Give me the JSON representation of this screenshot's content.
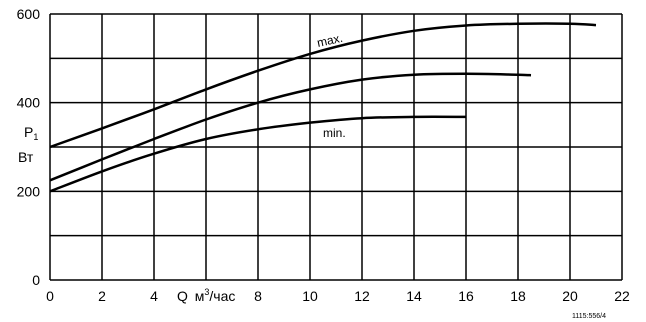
{
  "chart_data": {
    "type": "line",
    "x_ticks": [
      "0",
      "2",
      "4",
      "6",
      "8",
      "10",
      "12",
      "14",
      "16",
      "18",
      "20",
      "22"
    ],
    "y_ticks": [
      "0",
      "200",
      "400",
      "600"
    ],
    "xlim": [
      0,
      22
    ],
    "ylim": [
      0,
      600
    ],
    "grid": true,
    "xlabel_q": "Q",
    "xlabel_unit_prefix": "м",
    "xlabel_unit_sup": "3",
    "xlabel_unit_suffix": "/час",
    "ylabel_p": "P",
    "ylabel_sub": "1",
    "ylabel_unit": "Вт",
    "figure_ref": "1115:556/4",
    "series": [
      {
        "name": "max.",
        "x": [
          0,
          2,
          4,
          6,
          8,
          10,
          12,
          14,
          16,
          18,
          20,
          21
        ],
        "y": [
          300,
          342,
          385,
          430,
          472,
          510,
          540,
          562,
          574,
          578,
          578,
          575
        ]
      },
      {
        "name": "",
        "x": [
          0,
          2,
          4,
          6,
          8,
          10,
          12,
          14,
          16,
          18,
          18.5
        ],
        "y": [
          225,
          272,
          318,
          362,
          400,
          430,
          452,
          463,
          465,
          463,
          462
        ]
      },
      {
        "name": "min.",
        "x": [
          0,
          2,
          4,
          6,
          8,
          10,
          12,
          14,
          16
        ],
        "y": [
          200,
          245,
          285,
          318,
          340,
          355,
          365,
          368,
          368
        ]
      }
    ]
  }
}
